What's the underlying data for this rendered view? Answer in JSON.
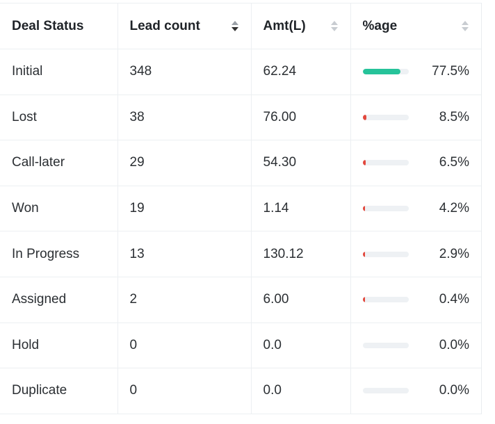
{
  "columns": [
    {
      "label": "Deal Status",
      "sortable": false
    },
    {
      "label": "Lead count",
      "sortable": true,
      "sort_state": "descending"
    },
    {
      "label": "Amt(L)",
      "sortable": true,
      "sort_state": "none"
    },
    {
      "label": "%age",
      "sortable": true,
      "sort_state": "none"
    }
  ],
  "colors": {
    "bar_high": "#26c39a",
    "bar_low": "#e2483d",
    "bar_track": "#eef1f4"
  },
  "rows": [
    {
      "status": "Initial",
      "lead_count": "348",
      "amount": "62.24",
      "percent_label": "77.5%",
      "percent": 77.5
    },
    {
      "status": "Lost",
      "lead_count": "38",
      "amount": "76.00",
      "percent_label": "8.5%",
      "percent": 8.5
    },
    {
      "status": "Call-later",
      "lead_count": "29",
      "amount": "54.30",
      "percent_label": "6.5%",
      "percent": 6.5
    },
    {
      "status": "Won",
      "lead_count": "19",
      "amount": "1.14",
      "percent_label": "4.2%",
      "percent": 4.2
    },
    {
      "status": "In Progress",
      "lead_count": "13",
      "amount": "130.12",
      "percent_label": "2.9%",
      "percent": 2.9
    },
    {
      "status": "Assigned",
      "lead_count": "2",
      "amount": "6.00",
      "percent_label": "0.4%",
      "percent": 0.4
    },
    {
      "status": "Hold",
      "lead_count": "0",
      "amount": "0.0",
      "percent_label": "0.0%",
      "percent": 0.0
    },
    {
      "status": "Duplicate",
      "lead_count": "0",
      "amount": "0.0",
      "percent_label": "0.0%",
      "percent": 0.0
    }
  ]
}
